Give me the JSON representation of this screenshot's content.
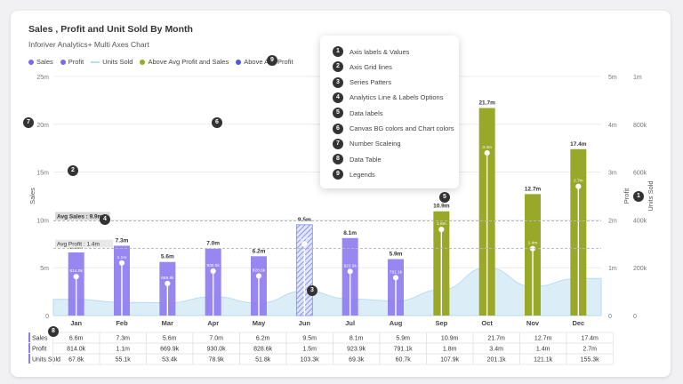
{
  "title": "Sales , Profit and Unit Sold By Month",
  "subtitle": "Inforiver Analytics+ Multi Axes Chart",
  "legend": [
    {
      "label": "Sales",
      "kind": "dot",
      "color": "#7b68ee"
    },
    {
      "label": "Profit",
      "kind": "dot",
      "color": "#7b68ee"
    },
    {
      "label": "Units Sold",
      "kind": "line",
      "color": "#b9dbf0"
    },
    {
      "label": "Above Avg Profit and Sales",
      "kind": "dot",
      "color": "#9aa829"
    },
    {
      "label": "Above Avg Profit",
      "kind": "dot",
      "color": "#4a5ad8"
    }
  ],
  "features": [
    {
      "n": "1",
      "label": "Axis labels & Values"
    },
    {
      "n": "2",
      "label": "Axis Grid lines"
    },
    {
      "n": "3",
      "label": "Series Patters"
    },
    {
      "n": "4",
      "label": "Analytics Line & Labels Options"
    },
    {
      "n": "5",
      "label": "Data labels"
    },
    {
      "n": "6",
      "label": "Canvas BG colors and Chart colors"
    },
    {
      "n": "7",
      "label": "Number Scaleing"
    },
    {
      "n": "8",
      "label": "Data Table"
    },
    {
      "n": "9",
      "label": "Legends"
    }
  ],
  "colors": {
    "sales_bar": "#8f7cf0",
    "above_avg_bar": "#9aa829",
    "units_area": "#cfe8f6",
    "pattern_bar": "#7b8ff0",
    "avg_line": "#b8b8b8"
  },
  "chart_data": {
    "type": "bar",
    "categories": [
      "Jan",
      "Feb",
      "Mar",
      "Apr",
      "May",
      "Jun",
      "Jul",
      "Aug",
      "Sep",
      "Oct",
      "Nov",
      "Dec"
    ],
    "series": [
      {
        "name": "Sales",
        "axis": "left",
        "values": [
          6.6,
          7.3,
          5.6,
          7.0,
          6.2,
          9.5,
          8.1,
          5.9,
          10.9,
          21.7,
          12.7,
          17.4
        ],
        "labels": [
          "6.6m",
          "7.3m",
          "5.6m",
          "7.0m",
          "6.2m",
          "9.5m",
          "8.1m",
          "5.9m",
          "10.9m",
          "21.7m",
          "12.7m",
          "17.4m"
        ]
      },
      {
        "name": "Profit",
        "axis": "right",
        "values": [
          0.814,
          1.1,
          0.6699,
          0.93,
          0.8286,
          1.5,
          0.9239,
          0.7911,
          1.8,
          3.4,
          1.4,
          2.7
        ],
        "labels": [
          "814.0k",
          "1.1m",
          "669.9k",
          "930.0k",
          "828.6k",
          "1.5m",
          "923.9k",
          "791.1k",
          "1.8m",
          "3.4m",
          "1.4m",
          "2.7m"
        ]
      },
      {
        "name": "Units Sold",
        "axis": "right2",
        "values": [
          67.8,
          55.1,
          53.4,
          78.9,
          51.8,
          103.3,
          69.3,
          60.7,
          107.9,
          201.1,
          121.1,
          155.3
        ]
      }
    ],
    "highlight_above_avg": [
      false,
      false,
      false,
      false,
      false,
      false,
      false,
      false,
      true,
      true,
      true,
      true
    ],
    "patterned": [
      false,
      false,
      false,
      false,
      false,
      true,
      false,
      false,
      false,
      false,
      false,
      false
    ],
    "left_axis": {
      "label": "Sales",
      "ticks": [
        "0",
        "5m",
        "10m",
        "15m",
        "20m",
        "25m"
      ],
      "max": 25
    },
    "right_axis": {
      "label": "Profit",
      "ticks": [
        "0",
        "1m",
        "2m",
        "3m",
        "4m",
        "5m"
      ],
      "max": 5
    },
    "right2_axis": {
      "label": "Units Sold",
      "ticks": [
        "0",
        "200k",
        "400k",
        "600k",
        "800k",
        "1m"
      ],
      "max": 1000
    },
    "avg_lines": [
      {
        "label": "Avg Sales : 9.9m",
        "value": 9.9,
        "axis": "left"
      },
      {
        "label": "Avg Profit : 1.4m",
        "value": 1.4,
        "axis": "right"
      }
    ],
    "grid": true
  },
  "table": {
    "rows": [
      {
        "name": "Sales",
        "values": [
          "6.6m",
          "7.3m",
          "5.6m",
          "7.0m",
          "6.2m",
          "9.5m",
          "8.1m",
          "5.9m",
          "10.9m",
          "21.7m",
          "12.7m",
          "17.4m"
        ]
      },
      {
        "name": "Profit",
        "values": [
          "814.0k",
          "1.1m",
          "669.9k",
          "930.0k",
          "828.6k",
          "1.5m",
          "923.9k",
          "791.1k",
          "1.8m",
          "3.4m",
          "1.4m",
          "2.7m"
        ]
      },
      {
        "name": "Units Sold",
        "values": [
          "67.8k",
          "55.1k",
          "53.4k",
          "78.9k",
          "51.8k",
          "103.3k",
          "69.3k",
          "60.7k",
          "107.9k",
          "201.1k",
          "121.1k",
          "155.3k"
        ]
      }
    ]
  }
}
